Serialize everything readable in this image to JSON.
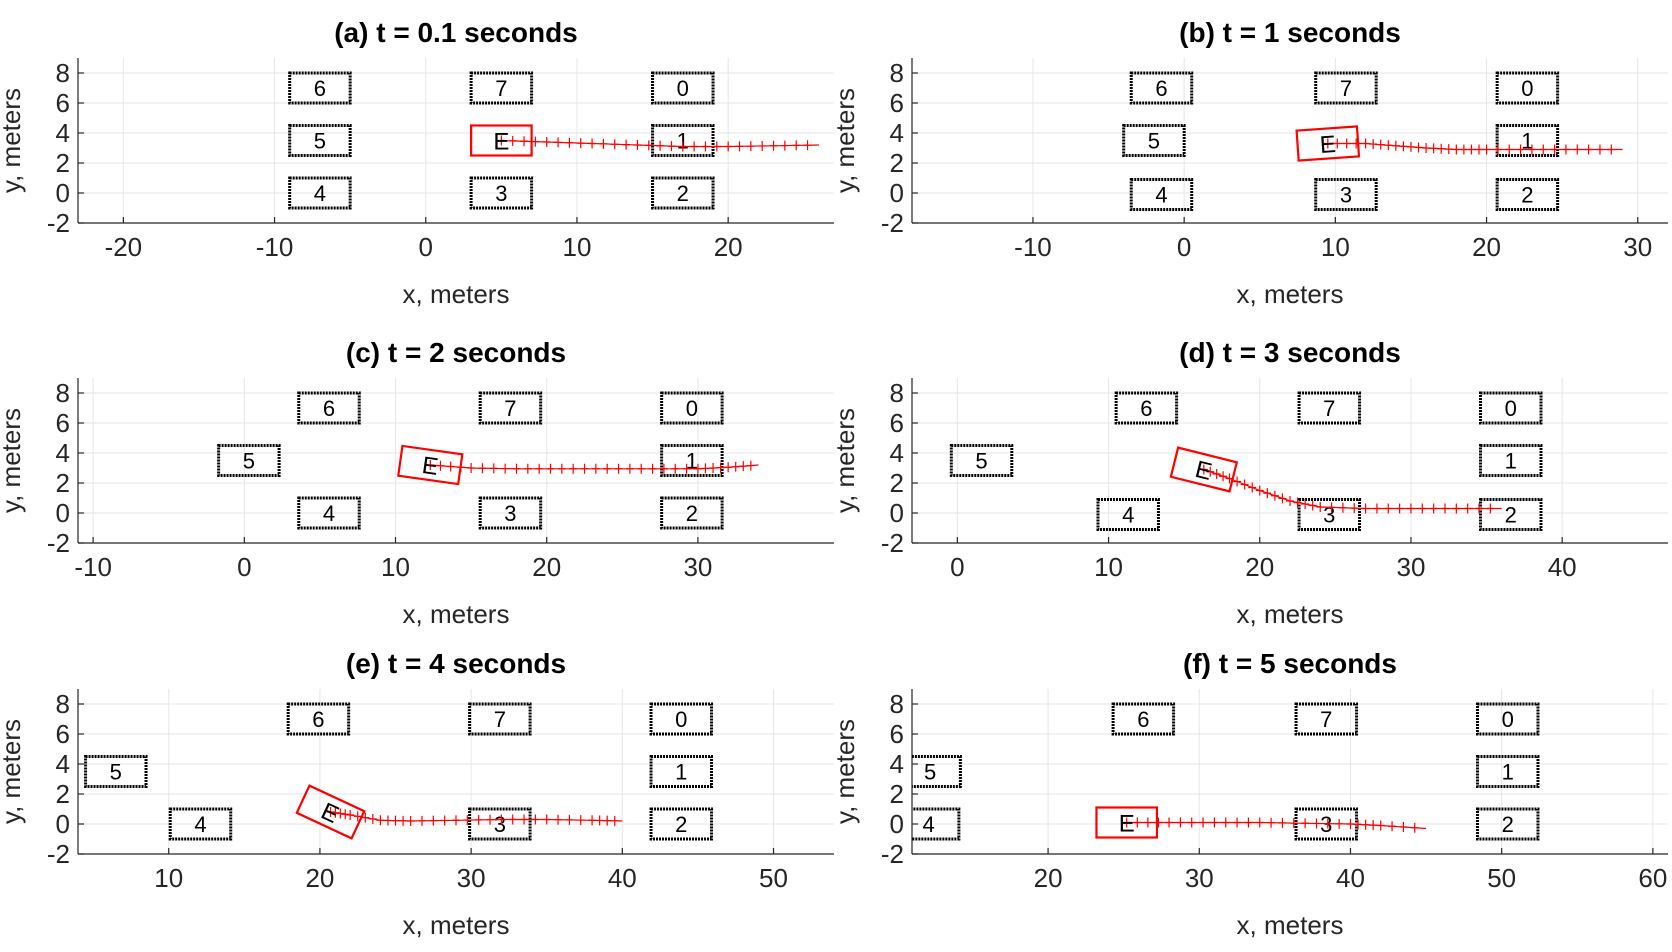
{
  "colors": {
    "ego": "#ff0000",
    "vehicle": "#000000",
    "grid": "#e6e6e6",
    "axis": "#262626",
    "trajectory": "#ff0000"
  },
  "chart_data": [
    {
      "id": "a",
      "type": "scatter",
      "title": "(a) t = 0.1 seconds",
      "xlabel": "x, meters",
      "ylabel": "y, meters",
      "xlim": [
        -23,
        27
      ],
      "ylim": [
        -2,
        9
      ],
      "xticks": [
        -20,
        -10,
        0,
        10,
        20
      ],
      "yticks": [
        -2,
        0,
        2,
        4,
        6,
        8
      ],
      "vehicles": [
        {
          "id": "6",
          "x": -7,
          "y": 7,
          "heading": 0
        },
        {
          "id": "7",
          "x": 5,
          "y": 7,
          "heading": 0
        },
        {
          "id": "0",
          "x": 17,
          "y": 7,
          "heading": 0
        },
        {
          "id": "5",
          "x": -7,
          "y": 3.5,
          "heading": 0
        },
        {
          "id": "1",
          "x": 17,
          "y": 3.5,
          "heading": 0
        },
        {
          "id": "4",
          "x": -7,
          "y": 0,
          "heading": 0
        },
        {
          "id": "3",
          "x": 5,
          "y": 0,
          "heading": 0
        },
        {
          "id": "2",
          "x": 17,
          "y": 0,
          "heading": 0
        }
      ],
      "ego": {
        "label": "E",
        "x": 5,
        "y": 3.5,
        "heading": 0
      },
      "trajectory": [
        [
          5,
          3.5
        ],
        [
          8,
          3.4
        ],
        [
          11,
          3.3
        ],
        [
          14,
          3.2
        ],
        [
          17,
          3.1
        ],
        [
          20,
          3.1
        ],
        [
          23,
          3.15
        ],
        [
          26,
          3.2
        ]
      ]
    },
    {
      "id": "b",
      "type": "scatter",
      "title": "(b) t = 1 seconds",
      "xlabel": "x, meters",
      "ylabel": "y, meters",
      "xlim": [
        -18,
        32
      ],
      "ylim": [
        -2,
        9
      ],
      "xticks": [
        -10,
        0,
        10,
        20,
        30
      ],
      "yticks": [
        -2,
        0,
        2,
        4,
        6,
        8
      ],
      "vehicles": [
        {
          "id": "6",
          "x": -1.5,
          "y": 7,
          "heading": 0
        },
        {
          "id": "7",
          "x": 10.7,
          "y": 7,
          "heading": 0
        },
        {
          "id": "0",
          "x": 22.7,
          "y": 7,
          "heading": 0
        },
        {
          "id": "5",
          "x": -2,
          "y": 3.5,
          "heading": 0
        },
        {
          "id": "1",
          "x": 22.7,
          "y": 3.5,
          "heading": 0
        },
        {
          "id": "4",
          "x": -1.5,
          "y": -0.1,
          "heading": 0
        },
        {
          "id": "3",
          "x": 10.7,
          "y": -0.1,
          "heading": 0
        },
        {
          "id": "2",
          "x": 22.7,
          "y": -0.1,
          "heading": 0
        }
      ],
      "ego": {
        "label": "E",
        "x": 9.5,
        "y": 3.3,
        "heading": 4
      },
      "trajectory": [
        [
          9.5,
          3.3
        ],
        [
          12,
          3.3
        ],
        [
          14,
          3.15
        ],
        [
          16,
          3.0
        ],
        [
          18,
          2.9
        ],
        [
          20,
          2.9
        ],
        [
          23,
          2.9
        ],
        [
          26,
          2.9
        ],
        [
          29,
          2.9
        ]
      ]
    },
    {
      "id": "c",
      "type": "scatter",
      "title": "(c) t = 2 seconds",
      "xlabel": "x, meters",
      "ylabel": "y, meters",
      "xlim": [
        -11,
        39
      ],
      "ylim": [
        -2,
        9
      ],
      "xticks": [
        -10,
        0,
        10,
        20,
        30
      ],
      "yticks": [
        -2,
        0,
        2,
        4,
        6,
        8
      ],
      "vehicles": [
        {
          "id": "6",
          "x": 5.6,
          "y": 7,
          "heading": 0
        },
        {
          "id": "7",
          "x": 17.6,
          "y": 7,
          "heading": 0
        },
        {
          "id": "0",
          "x": 29.6,
          "y": 7,
          "heading": 0
        },
        {
          "id": "5",
          "x": 0.3,
          "y": 3.5,
          "heading": 0
        },
        {
          "id": "1",
          "x": 29.6,
          "y": 3.5,
          "heading": 0
        },
        {
          "id": "4",
          "x": 5.6,
          "y": 0,
          "heading": 0
        },
        {
          "id": "3",
          "x": 17.6,
          "y": 0,
          "heading": 0
        },
        {
          "id": "2",
          "x": 29.6,
          "y": 0,
          "heading": 0
        }
      ],
      "ego": {
        "label": "E",
        "x": 12.3,
        "y": 3.2,
        "heading": -8
      },
      "trajectory": [
        [
          12.3,
          3.2
        ],
        [
          15,
          3.0
        ],
        [
          18,
          2.95
        ],
        [
          21,
          2.95
        ],
        [
          24,
          2.95
        ],
        [
          27,
          2.95
        ],
        [
          30,
          2.95
        ],
        [
          32,
          3.05
        ],
        [
          34,
          3.2
        ]
      ]
    },
    {
      "id": "d",
      "type": "scatter",
      "title": "(d) t = 3 seconds",
      "xlabel": "x, meters",
      "ylabel": "y, meters",
      "xlim": [
        -3,
        47
      ],
      "ylim": [
        -2,
        9
      ],
      "xticks": [
        0,
        10,
        20,
        30,
        40
      ],
      "yticks": [
        -2,
        0,
        2,
        4,
        6,
        8
      ],
      "vehicles": [
        {
          "id": "6",
          "x": 12.5,
          "y": 7,
          "heading": 0
        },
        {
          "id": "7",
          "x": 24.6,
          "y": 7,
          "heading": 0
        },
        {
          "id": "0",
          "x": 36.6,
          "y": 7,
          "heading": 0
        },
        {
          "id": "5",
          "x": 1.6,
          "y": 3.5,
          "heading": 0
        },
        {
          "id": "1",
          "x": 36.6,
          "y": 3.5,
          "heading": 0
        },
        {
          "id": "4",
          "x": 11.3,
          "y": -0.1,
          "heading": 0
        },
        {
          "id": "3",
          "x": 24.6,
          "y": -0.1,
          "heading": 0
        },
        {
          "id": "2",
          "x": 36.6,
          "y": -0.1,
          "heading": 0
        }
      ],
      "ego": {
        "label": "E",
        "x": 16.3,
        "y": 2.9,
        "heading": -14
      },
      "trajectory": [
        [
          16.3,
          2.9
        ],
        [
          18,
          2.3
        ],
        [
          20,
          1.5
        ],
        [
          22,
          0.8
        ],
        [
          24,
          0.4
        ],
        [
          27,
          0.3
        ],
        [
          30,
          0.3
        ],
        [
          33,
          0.3
        ],
        [
          36,
          0.3
        ]
      ]
    },
    {
      "id": "e",
      "type": "scatter",
      "title": "(e) t = 4 seconds",
      "xlabel": "x, meters",
      "ylabel": "y, meters",
      "xlim": [
        4,
        54
      ],
      "ylim": [
        -2,
        9
      ],
      "xticks": [
        10,
        20,
        30,
        40,
        50
      ],
      "yticks": [
        -2,
        0,
        2,
        4,
        6,
        8
      ],
      "vehicles": [
        {
          "id": "6",
          "x": 19.9,
          "y": 7,
          "heading": 0
        },
        {
          "id": "7",
          "x": 31.9,
          "y": 7,
          "heading": 0
        },
        {
          "id": "0",
          "x": 43.9,
          "y": 7,
          "heading": 0
        },
        {
          "id": "5",
          "x": 6.5,
          "y": 3.5,
          "heading": 0
        },
        {
          "id": "1",
          "x": 43.9,
          "y": 3.5,
          "heading": 0
        },
        {
          "id": "4",
          "x": 12.1,
          "y": 0,
          "heading": 0
        },
        {
          "id": "3",
          "x": 31.9,
          "y": 0,
          "heading": 0
        },
        {
          "id": "2",
          "x": 43.9,
          "y": 0,
          "heading": 0
        }
      ],
      "ego": {
        "label": "E",
        "x": 20.7,
        "y": 0.8,
        "heading": -25
      },
      "trajectory": [
        [
          20.7,
          0.8
        ],
        [
          22,
          0.6
        ],
        [
          24,
          0.25
        ],
        [
          26,
          0.2
        ],
        [
          29,
          0.25
        ],
        [
          32,
          0.3
        ],
        [
          35,
          0.3
        ],
        [
          38,
          0.25
        ],
        [
          40,
          0.2
        ]
      ]
    },
    {
      "id": "f",
      "type": "scatter",
      "title": "(f) t = 5 seconds",
      "xlabel": "x, meters",
      "ylabel": "y, meters",
      "xlim": [
        11,
        61
      ],
      "ylim": [
        -2,
        9
      ],
      "xticks": [
        20,
        30,
        40,
        50,
        60
      ],
      "yticks": [
        -2,
        0,
        2,
        4,
        6,
        8
      ],
      "vehicles": [
        {
          "id": "6",
          "x": 26.3,
          "y": 7,
          "heading": 0
        },
        {
          "id": "7",
          "x": 38.4,
          "y": 7,
          "heading": 0
        },
        {
          "id": "0",
          "x": 50.4,
          "y": 7,
          "heading": 0
        },
        {
          "id": "5",
          "x": 12.2,
          "y": 3.5,
          "heading": 0
        },
        {
          "id": "1",
          "x": 50.4,
          "y": 3.5,
          "heading": 0
        },
        {
          "id": "4",
          "x": 12.1,
          "y": 0,
          "heading": 0
        },
        {
          "id": "3",
          "x": 38.4,
          "y": 0,
          "heading": 0
        },
        {
          "id": "2",
          "x": 50.4,
          "y": 0,
          "heading": 0
        }
      ],
      "ego": {
        "label": "E",
        "x": 25.2,
        "y": 0.1,
        "heading": 0
      },
      "trajectory": [
        [
          25.2,
          0.1
        ],
        [
          28,
          0.1
        ],
        [
          31,
          0.1
        ],
        [
          34,
          0.1
        ],
        [
          37,
          0.05
        ],
        [
          40,
          0.0
        ],
        [
          42,
          -0.1
        ],
        [
          45,
          -0.3
        ]
      ]
    }
  ]
}
